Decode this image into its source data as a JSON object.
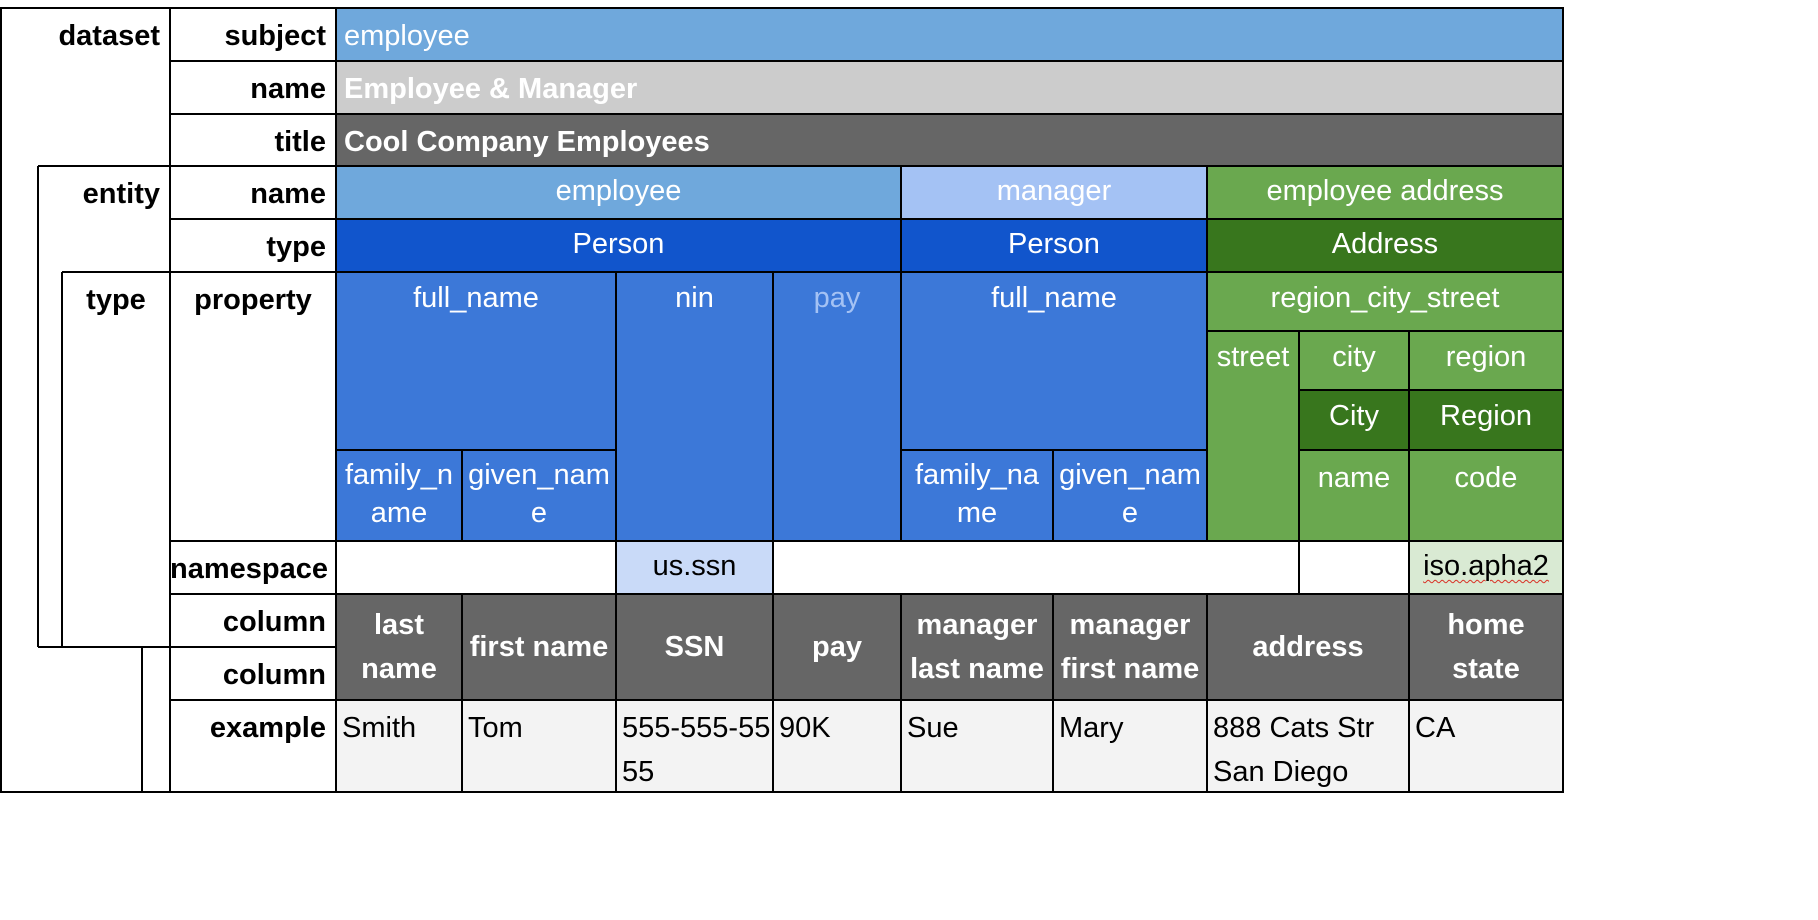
{
  "labels": {
    "dataset": "dataset",
    "subject": "subject",
    "name": "name",
    "title": "title",
    "entity": "entity",
    "type": "type",
    "property": "property",
    "namespace": "namespace",
    "column": "column",
    "example": "example"
  },
  "dataset": {
    "subject": "employee",
    "name": "Employee & Manager",
    "title": "Cool Company Employees"
  },
  "entities": [
    {
      "name": "employee",
      "type": "Person"
    },
    {
      "name": "manager",
      "type": "Person"
    },
    {
      "name": "employee address",
      "type": "Address"
    }
  ],
  "properties": {
    "emp_full_name": "full_name",
    "nin": "nin",
    "pay": "pay",
    "mgr_full_name": "full_name",
    "region_city_street": "region_city_street",
    "street": "street",
    "city": "city",
    "region": "region",
    "city_type": "City",
    "region_type": "Region",
    "family_name_1": "family_n ame",
    "given_name_1": "given_nam e",
    "family_name_2": "family_na me",
    "given_name_2": "given_nam e",
    "city_name": "name",
    "region_code": "code"
  },
  "namespaces": {
    "ssn": "us.ssn",
    "region": "iso.apha2"
  },
  "columns": [
    "last name",
    "first name",
    "SSN",
    "pay",
    "manager last name",
    "manager first name",
    "address",
    "home state"
  ],
  "examples": [
    "Smith",
    "Tom",
    "555-555-55 55",
    "90K",
    "Sue",
    "Mary",
    "888 Cats Str San Diego",
    "CA"
  ],
  "colors": {
    "subject_bar": "#6fa8dc",
    "name_bar": "#cccccc",
    "title_bar": "#666666",
    "entity_blue": "#6fa8dc",
    "entity_light_blue": "#a4c2f4",
    "entity_green": "#6aa84f",
    "type_blue": "#1155cc",
    "type_green": "#38761d",
    "property_blue": "#3c78d8",
    "property_green": "#6aa84f",
    "class_dark_green": "#38761d",
    "namespace_blue": "#c9daf8",
    "namespace_green": "#d9ead3",
    "column_header": "#666666",
    "example_bg": "#f3f3f3"
  }
}
